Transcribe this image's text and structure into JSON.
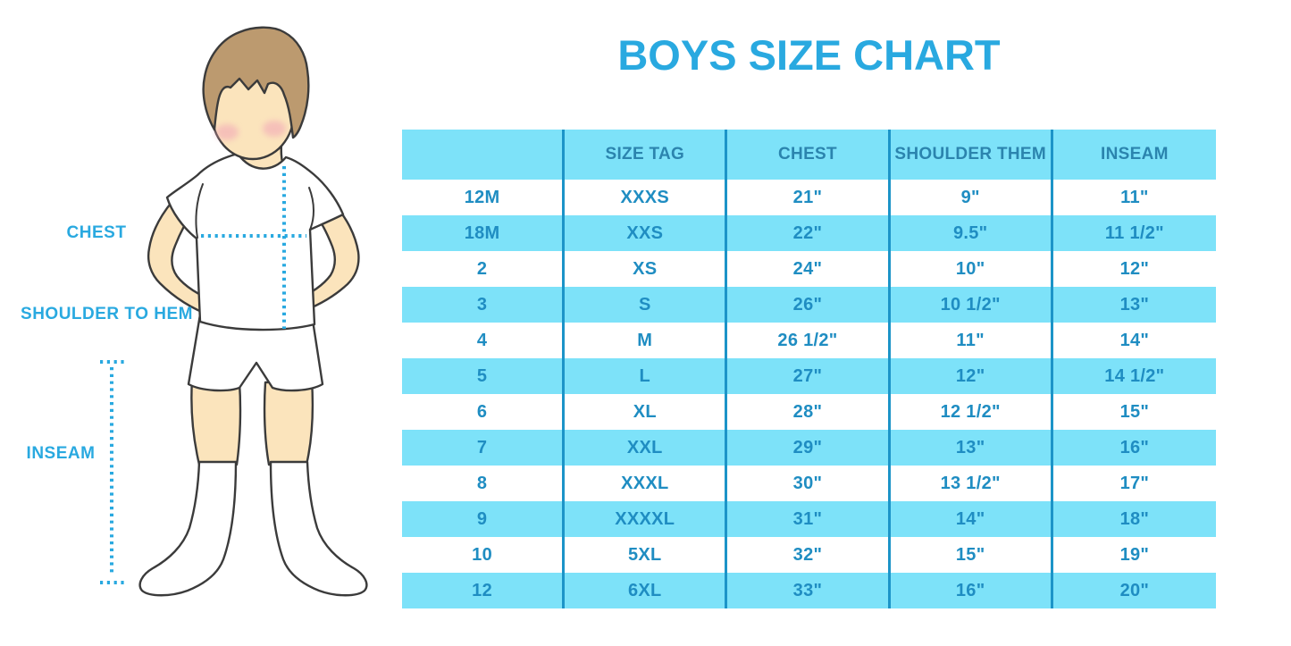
{
  "page": {
    "title": "BOYS SIZE CHART"
  },
  "figure": {
    "description": "boy-with-measurement-lines",
    "labels": {
      "chest": "CHEST",
      "shoulder_to_hem": "SHOULDER TO HEM",
      "inseam": "INSEAM"
    }
  },
  "colors": {
    "accent_blue": "#29A9E0",
    "row_cyan": "#7DE2F9",
    "divider_blue": "#1C94C8",
    "cell_text": "#1F8DC2",
    "header_text": "#2B84AE",
    "skin": "#FBE4BC",
    "hair": "#BC9A6F"
  },
  "chart_data": {
    "type": "table",
    "title": "BOYS SIZE CHART",
    "columns": [
      "",
      "SIZE TAG",
      "CHEST",
      "SHOULDER THEM",
      "INSEAM"
    ],
    "rows": [
      [
        "12M",
        "XXXS",
        "21\"",
        "9\"",
        "11\""
      ],
      [
        "18M",
        "XXS",
        "22\"",
        "9.5\"",
        "11 1/2\""
      ],
      [
        "2",
        "XS",
        "24\"",
        "10\"",
        "12\""
      ],
      [
        "3",
        "S",
        "26\"",
        "10 1/2\"",
        "13\""
      ],
      [
        "4",
        "M",
        "26 1/2\"",
        "11\"",
        "14\""
      ],
      [
        "5",
        "L",
        "27\"",
        "12\"",
        "14 1/2\""
      ],
      [
        "6",
        "XL",
        "28\"",
        "12 1/2\"",
        "15\""
      ],
      [
        "7",
        "XXL",
        "29\"",
        "13\"",
        "16\""
      ],
      [
        "8",
        "XXXL",
        "30\"",
        "13 1/2\"",
        "17\""
      ],
      [
        "9",
        "XXXXL",
        "31\"",
        "14\"",
        "18\""
      ],
      [
        "10",
        "5XL",
        "32\"",
        "15\"",
        "19\""
      ],
      [
        "12",
        "6XL",
        "33\"",
        "16\"",
        "20\""
      ]
    ],
    "row_striping": "white/cyan alternating, header cyan",
    "grid": "vertical dividers only"
  }
}
